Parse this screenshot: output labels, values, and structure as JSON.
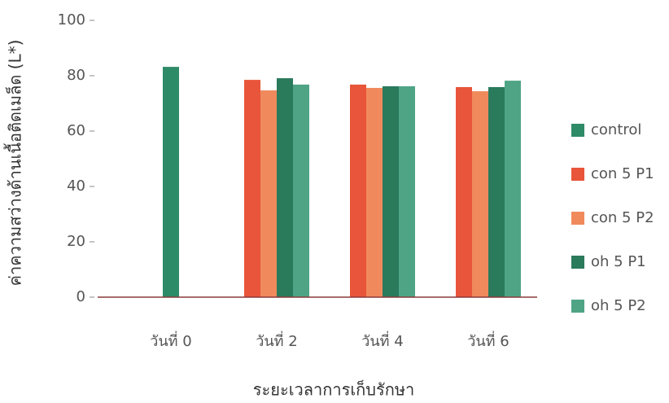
{
  "chart_data": {
    "type": "bar",
    "x_label": "ระยะเวลาการเก็บรักษา",
    "y_label": "ค่าความสว่างด้านเนื้อติดเมล็ด (L*)",
    "categories": [
      "วันที่ 0",
      "วันที่ 2",
      "วันที่ 4",
      "วันที่ 6"
    ],
    "series": [
      {
        "name": "control",
        "color": "#2e8b68",
        "values": [
          83.2,
          null,
          null,
          null
        ]
      },
      {
        "name": "con 5 P1",
        "color": "#e8553a",
        "values": [
          null,
          78.5,
          76.8,
          75.9
        ]
      },
      {
        "name": "con 5 P2",
        "color": "#f08a5d",
        "values": [
          null,
          74.7,
          75.6,
          74.4
        ]
      },
      {
        "name": "oh 5 P1",
        "color": "#2a7a5c",
        "values": [
          null,
          79.1,
          76.2,
          75.9
        ]
      },
      {
        "name": "oh 5 P2",
        "color": "#4fa486",
        "values": [
          null,
          76.8,
          76.2,
          78.2
        ]
      }
    ],
    "ylim": [
      0,
      100
    ],
    "yticks": [
      0,
      20,
      40,
      60,
      80,
      100
    ],
    "legend": "right"
  }
}
